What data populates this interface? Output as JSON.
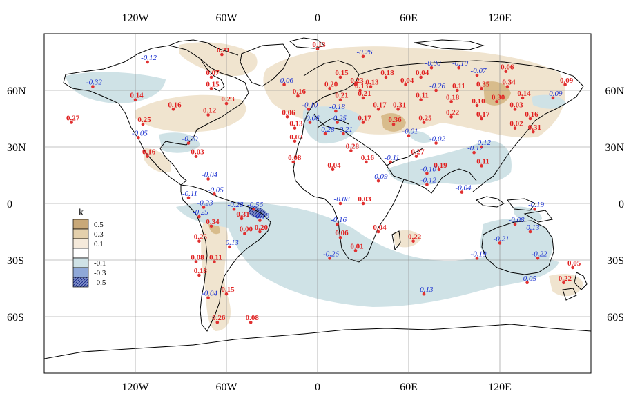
{
  "map": {
    "lon_ticks": [
      {
        "lon": -120,
        "label": "120W"
      },
      {
        "lon": -60,
        "label": "60W"
      },
      {
        "lon": 0,
        "label": "0"
      },
      {
        "lon": 60,
        "label": "60E"
      },
      {
        "lon": 120,
        "label": "120E"
      }
    ],
    "lat_ticks": [
      {
        "lat": 60,
        "label": "60N"
      },
      {
        "lat": 30,
        "label": "30N"
      },
      {
        "lat": 0,
        "label": "0"
      },
      {
        "lat": -30,
        "label": "30S"
      },
      {
        "lat": -60,
        "label": "60S"
      }
    ],
    "lon_range": [
      -180,
      180
    ],
    "lat_range": [
      -90,
      90
    ],
    "grid": true
  },
  "legend": {
    "title": "k",
    "placement": "left-middle",
    "items": [
      {
        "label": "0.5",
        "color": "#c8a878"
      },
      {
        "label": "0.3",
        "color": "#e4d0ac"
      },
      {
        "label": "0.1",
        "color": "#f5eadb"
      },
      {
        "label": "",
        "color": "#ffffff"
      },
      {
        "label": "-0.1",
        "color": "#cfe2e6"
      },
      {
        "label": "-0.3",
        "color": "#8fa8d8"
      },
      {
        "label": "-0.5",
        "color": "#3a4aa0"
      }
    ]
  },
  "colors": {
    "positive_text": "#e02020",
    "negative_text": "#1a30d0",
    "positive_shade": "#f0e4cf",
    "negative_shade": "#cfe2e6"
  },
  "stations": [
    {
      "lon": -63,
      "lat": 79,
      "value": "0.21"
    },
    {
      "lon": -112,
      "lat": 75,
      "value": "-0.12"
    },
    {
      "lon": -148,
      "lat": 62,
      "value": "-0.32"
    },
    {
      "lon": -120,
      "lat": 55,
      "value": "0.14"
    },
    {
      "lon": -70,
      "lat": 67,
      "value": "0.07"
    },
    {
      "lon": -70,
      "lat": 61,
      "value": "0.15"
    },
    {
      "lon": -60,
      "lat": 53,
      "value": "0.23"
    },
    {
      "lon": -95,
      "lat": 50,
      "value": "0.16"
    },
    {
      "lon": -72,
      "lat": 47,
      "value": "0.12"
    },
    {
      "lon": -162,
      "lat": 43,
      "value": "0.27"
    },
    {
      "lon": -115,
      "lat": 42,
      "value": "0.25"
    },
    {
      "lon": -118,
      "lat": 35,
      "value": "-0.05"
    },
    {
      "lon": -85,
      "lat": 32,
      "value": "-0.20"
    },
    {
      "lon": -112,
      "lat": 25,
      "value": "0.16"
    },
    {
      "lon": -80,
      "lat": 25,
      "value": "0.03"
    },
    {
      "lon": -72,
      "lat": 13,
      "value": "-0.04"
    },
    {
      "lon": -68,
      "lat": 5,
      "value": "-0.05"
    },
    {
      "lon": -85,
      "lat": 3,
      "value": "-0.11"
    },
    {
      "lon": -75,
      "lat": -2,
      "value": "-0.23"
    },
    {
      "lon": -55,
      "lat": -3,
      "value": "-0.28"
    },
    {
      "lon": -42,
      "lat": -3,
      "value": "-0.56"
    },
    {
      "lon": -38,
      "lat": -9,
      "value": "-0.10"
    },
    {
      "lon": -78,
      "lat": -7,
      "value": "-0.25"
    },
    {
      "lon": -70,
      "lat": -12,
      "value": "0.34"
    },
    {
      "lon": -50,
      "lat": -8,
      "value": "0.31"
    },
    {
      "lon": -48,
      "lat": -16,
      "value": "0.00"
    },
    {
      "lon": -38,
      "lat": -15,
      "value": "0.20"
    },
    {
      "lon": -78,
      "lat": -20,
      "value": "0.25"
    },
    {
      "lon": -58,
      "lat": -23,
      "value": "-0.13"
    },
    {
      "lon": -80,
      "lat": -31,
      "value": "0.08"
    },
    {
      "lon": -68,
      "lat": -31,
      "value": "0.11"
    },
    {
      "lon": -78,
      "lat": -38,
      "value": "0.18"
    },
    {
      "lon": -72,
      "lat": -50,
      "value": "-0.04"
    },
    {
      "lon": -60,
      "lat": -48,
      "value": "0.15"
    },
    {
      "lon": -66,
      "lat": -63,
      "value": "0.26"
    },
    {
      "lon": -44,
      "lat": -63,
      "value": "0.08"
    },
    {
      "lon": -22,
      "lat": 63,
      "value": "-0.06"
    },
    {
      "lon": 0,
      "lat": 82,
      "value": "0.13"
    },
    {
      "lon": 30,
      "lat": 78,
      "value": "-0.26"
    },
    {
      "lon": 15,
      "lat": 67,
      "value": "0.15"
    },
    {
      "lon": 45,
      "lat": 67,
      "value": "0.18"
    },
    {
      "lon": 75,
      "lat": 72,
      "value": "-0.00"
    },
    {
      "lon": 93,
      "lat": 72,
      "value": "-0.10"
    },
    {
      "lon": 105,
      "lat": 68,
      "value": "-0.07"
    },
    {
      "lon": 124,
      "lat": 70,
      "value": "0.06"
    },
    {
      "lon": 68,
      "lat": 67,
      "value": "0.04"
    },
    {
      "lon": 8,
      "lat": 61,
      "value": "0.20"
    },
    {
      "lon": 25,
      "lat": 63,
      "value": "0.23"
    },
    {
      "lon": 35,
      "lat": 62,
      "value": "0.13"
    },
    {
      "lon": 28,
      "lat": 60,
      "value": "0.13"
    },
    {
      "lon": 58,
      "lat": 63,
      "value": "0.04"
    },
    {
      "lon": 78,
      "lat": 60,
      "value": "-0.26"
    },
    {
      "lon": 92,
      "lat": 60,
      "value": "0.11"
    },
    {
      "lon": 108,
      "lat": 61,
      "value": "0.35"
    },
    {
      "lon": 125,
      "lat": 62,
      "value": "0.34"
    },
    {
      "lon": 163,
      "lat": 63,
      "value": "0.09"
    },
    {
      "lon": -13,
      "lat": 57,
      "value": "0.16"
    },
    {
      "lon": 15,
      "lat": 55,
      "value": "0.21"
    },
    {
      "lon": 30,
      "lat": 56,
      "value": "0.21"
    },
    {
      "lon": 68,
      "lat": 55,
      "value": "0.11"
    },
    {
      "lon": 88,
      "lat": 54,
      "value": "0.18"
    },
    {
      "lon": 105,
      "lat": 52,
      "value": "0.10"
    },
    {
      "lon": 118,
      "lat": 54,
      "value": "0.30"
    },
    {
      "lon": 135,
      "lat": 56,
      "value": "0.14"
    },
    {
      "lon": 155,
      "lat": 56,
      "value": "-0.09"
    },
    {
      "lon": -6,
      "lat": 50,
      "value": "-0.10"
    },
    {
      "lon": 12,
      "lat": 49,
      "value": "-0.18"
    },
    {
      "lon": -20,
      "lat": 46,
      "value": "0.06"
    },
    {
      "lon": -5,
      "lat": 43,
      "value": "-0.06"
    },
    {
      "lon": -15,
      "lat": 40,
      "value": "0.13"
    },
    {
      "lon": 13,
      "lat": 43,
      "value": "-0.25"
    },
    {
      "lon": 30,
      "lat": 43,
      "value": "0.17"
    },
    {
      "lon": 40,
      "lat": 50,
      "value": "0.17"
    },
    {
      "lon": 53,
      "lat": 50,
      "value": "0.31"
    },
    {
      "lon": 50,
      "lat": 42,
      "value": "0.36"
    },
    {
      "lon": 70,
      "lat": 43,
      "value": "0.25"
    },
    {
      "lon": 88,
      "lat": 46,
      "value": "0.22"
    },
    {
      "lon": 108,
      "lat": 45,
      "value": "0.17"
    },
    {
      "lon": 130,
      "lat": 50,
      "value": "0.03"
    },
    {
      "lon": 140,
      "lat": 45,
      "value": "0.16"
    },
    {
      "lon": 130,
      "lat": 40,
      "value": "0.02"
    },
    {
      "lon": 142,
      "lat": 38,
      "value": "0.31"
    },
    {
      "lon": 5,
      "lat": 37,
      "value": "-0.28"
    },
    {
      "lon": 17,
      "lat": 37,
      "value": "-0.21"
    },
    {
      "lon": -15,
      "lat": 33,
      "value": "0.03"
    },
    {
      "lon": 60,
      "lat": 36,
      "value": "-0.01"
    },
    {
      "lon": 78,
      "lat": 32,
      "value": "-0.02"
    },
    {
      "lon": 108,
      "lat": 30,
      "value": "-0.12"
    },
    {
      "lon": 103,
      "lat": 27,
      "value": "-0.12"
    },
    {
      "lon": 22,
      "lat": 28,
      "value": "0.28"
    },
    {
      "lon": 32,
      "lat": 22,
      "value": "0.16"
    },
    {
      "lon": 48,
      "lat": 22,
      "value": "-0.11"
    },
    {
      "lon": 65,
      "lat": 25,
      "value": "0.27"
    },
    {
      "lon": 80,
      "lat": 18,
      "value": "0.19"
    },
    {
      "lon": 108,
      "lat": 20,
      "value": "0.11"
    },
    {
      "lon": -16,
      "lat": 22,
      "value": "0.08"
    },
    {
      "lon": 10,
      "lat": 18,
      "value": "0.04"
    },
    {
      "lon": 72,
      "lat": 16,
      "value": "-0.10"
    },
    {
      "lon": 72,
      "lat": 10,
      "value": "-0.12"
    },
    {
      "lon": 40,
      "lat": 12,
      "value": "-0.09"
    },
    {
      "lon": 95,
      "lat": 6,
      "value": "-0.04"
    },
    {
      "lon": 15,
      "lat": 0,
      "value": "-0.08"
    },
    {
      "lon": 30,
      "lat": 0,
      "value": "0.03"
    },
    {
      "lon": 143,
      "lat": -3,
      "value": "-0.19"
    },
    {
      "lon": 13,
      "lat": -11,
      "value": "-0.16"
    },
    {
      "lon": 15,
      "lat": -18,
      "value": "0.06"
    },
    {
      "lon": 40,
      "lat": -15,
      "value": "0.04"
    },
    {
      "lon": 25,
      "lat": -25,
      "value": "0.01"
    },
    {
      "lon": 63,
      "lat": -20,
      "value": "0.22"
    },
    {
      "lon": 130,
      "lat": -11,
      "value": "-0.08"
    },
    {
      "lon": 140,
      "lat": -15,
      "value": "-0.13"
    },
    {
      "lon": 120,
      "lat": -21,
      "value": "-0.21"
    },
    {
      "lon": 105,
      "lat": -29,
      "value": "-0.19"
    },
    {
      "lon": 145,
      "lat": -29,
      "value": "-0.22"
    },
    {
      "lon": 8,
      "lat": -29,
      "value": "-0.26"
    },
    {
      "lon": 168,
      "lat": -34,
      "value": "0.05"
    },
    {
      "lon": 138,
      "lat": -42,
      "value": "-0.05"
    },
    {
      "lon": 162,
      "lat": -42,
      "value": "0.22"
    },
    {
      "lon": 70,
      "lat": -48,
      "value": "-0.13"
    }
  ]
}
